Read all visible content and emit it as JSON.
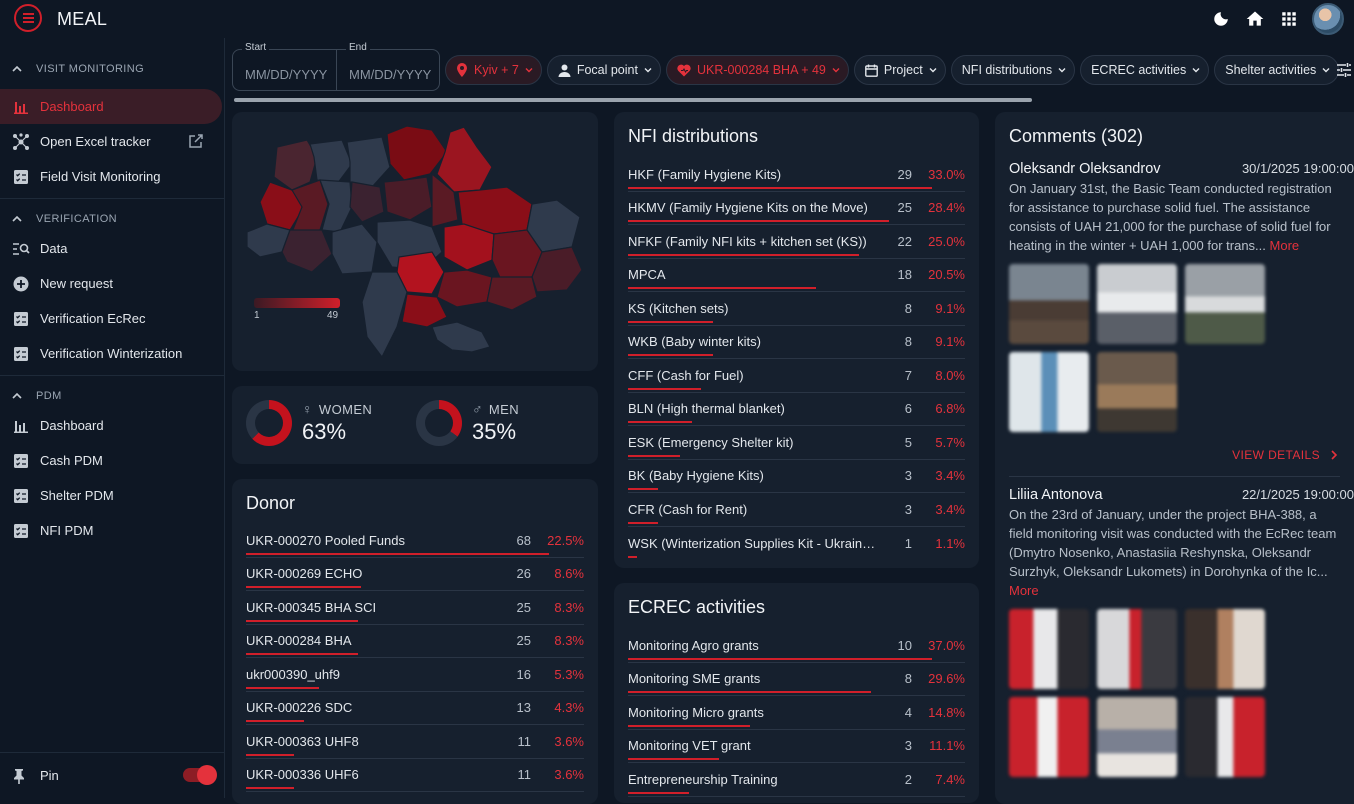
{
  "app": {
    "title": "MEAL"
  },
  "topbar": {
    "icons": [
      "dark-mode-icon",
      "home-icon",
      "apps-grid-icon",
      "user-avatar"
    ]
  },
  "sidebar": {
    "sections": [
      {
        "title": "VISIT MONITORING",
        "items": [
          {
            "label": "Dashboard",
            "icon": "bar-chart-icon",
            "active": true
          },
          {
            "label": "Open Excel tracker",
            "icon": "hub-icon",
            "external": true
          },
          {
            "label": "Field Visit Monitoring",
            "icon": "checklist-icon"
          }
        ]
      },
      {
        "title": "VERIFICATION",
        "items": [
          {
            "label": "Data",
            "icon": "search-list-icon"
          },
          {
            "label": "New request",
            "icon": "add-circle-icon"
          },
          {
            "label": "Verification EcRec",
            "icon": "checklist-icon"
          },
          {
            "label": "Verification Winterization",
            "icon": "checklist-icon"
          }
        ]
      },
      {
        "title": "PDM",
        "items": [
          {
            "label": "Dashboard",
            "icon": "bar-chart-icon"
          },
          {
            "label": "Cash PDM",
            "icon": "checklist-icon"
          },
          {
            "label": "Shelter PDM",
            "icon": "checklist-icon"
          },
          {
            "label": "NFI PDM",
            "icon": "checklist-icon"
          }
        ]
      }
    ],
    "pin_label": "Pin",
    "pin_enabled": true
  },
  "filters": {
    "start_label": "Start",
    "end_label": "End",
    "start_placeholder": "MM/DD/YYYY",
    "end_placeholder": "MM/DD/YYYY",
    "chips": [
      {
        "label": "Kyiv + 7",
        "icon": "location-pin-icon",
        "active": true
      },
      {
        "label": "Focal point",
        "icon": "person-icon",
        "active": false
      },
      {
        "label": "UKR-000284 BHA + 49",
        "icon": "donor-heart-icon",
        "active": true
      },
      {
        "label": "Project",
        "icon": "calendar-icon",
        "active": false
      },
      {
        "label": "NFI distributions",
        "icon": "",
        "active": false
      },
      {
        "label": "ECREC activities",
        "icon": "",
        "active": false
      },
      {
        "label": "Shelter activities",
        "icon": "",
        "active": false
      }
    ]
  },
  "map": {
    "legend_min": "1",
    "legend_max": "49",
    "colors": {
      "low": "#3b1a24",
      "high": "#d11f2a",
      "none": "#2b3848"
    }
  },
  "gender": {
    "women": {
      "label": "WOMEN",
      "value": "63%",
      "fraction": 0.63
    },
    "men": {
      "label": "MEN",
      "value": "35%",
      "fraction": 0.35
    }
  },
  "donor": {
    "title": "Donor",
    "rows": [
      {
        "label": "UKR-000270 Pooled Funds",
        "count": "68",
        "pct": "22.5%",
        "ratio": 1.0
      },
      {
        "label": "UKR-000269 ECHO",
        "count": "26",
        "pct": "8.6%",
        "ratio": 0.38
      },
      {
        "label": "UKR-000345 BHA SCI",
        "count": "25",
        "pct": "8.3%",
        "ratio": 0.37
      },
      {
        "label": "UKR-000284 BHA",
        "count": "25",
        "pct": "8.3%",
        "ratio": 0.37
      },
      {
        "label": "ukr000390_uhf9",
        "count": "16",
        "pct": "5.3%",
        "ratio": 0.24
      },
      {
        "label": "UKR-000226 SDC",
        "count": "13",
        "pct": "4.3%",
        "ratio": 0.19
      },
      {
        "label": "UKR-000363 UHF8",
        "count": "11",
        "pct": "3.6%",
        "ratio": 0.16
      },
      {
        "label": "UKR-000336 UHF6",
        "count": "11",
        "pct": "3.6%",
        "ratio": 0.16
      }
    ]
  },
  "nfi": {
    "title": "NFI distributions",
    "rows": [
      {
        "label": "HKF (Family Hygiene Kits)",
        "count": "29",
        "pct": "33.0%",
        "ratio": 1.0
      },
      {
        "label": "HKMV (Family Hygiene Kits on the Move)",
        "count": "25",
        "pct": "28.4%",
        "ratio": 0.86
      },
      {
        "label": "NFKF (Family NFI kits + kitchen set (KS))",
        "count": "22",
        "pct": "25.0%",
        "ratio": 0.76
      },
      {
        "label": "MPCA",
        "count": "18",
        "pct": "20.5%",
        "ratio": 0.62
      },
      {
        "label": "KS (Kitchen sets)",
        "count": "8",
        "pct": "9.1%",
        "ratio": 0.28
      },
      {
        "label": "WKB (Baby winter kits)",
        "count": "8",
        "pct": "9.1%",
        "ratio": 0.28
      },
      {
        "label": "CFF (Cash for Fuel)",
        "count": "7",
        "pct": "8.0%",
        "ratio": 0.24
      },
      {
        "label": "BLN (High thermal blanket)",
        "count": "6",
        "pct": "6.8%",
        "ratio": 0.21
      },
      {
        "label": "ESK (Emergency Shelter kit)",
        "count": "5",
        "pct": "5.7%",
        "ratio": 0.17
      },
      {
        "label": "BK (Baby Hygiene Kits)",
        "count": "3",
        "pct": "3.4%",
        "ratio": 0.1
      },
      {
        "label": "CFR (Cash for Rent)",
        "count": "3",
        "pct": "3.4%",
        "ratio": 0.1
      },
      {
        "label": "WSK (Winterization Supplies Kit - Ukraine, I...",
        "count": "1",
        "pct": "1.1%",
        "ratio": 0.03
      }
    ]
  },
  "ecrec": {
    "title": "ECREC activities",
    "rows": [
      {
        "label": "Monitoring Agro grants",
        "count": "10",
        "pct": "37.0%",
        "ratio": 1.0
      },
      {
        "label": "Monitoring SME grants",
        "count": "8",
        "pct": "29.6%",
        "ratio": 0.8
      },
      {
        "label": "Monitoring Micro grants",
        "count": "4",
        "pct": "14.8%",
        "ratio": 0.4
      },
      {
        "label": "Monitoring VET grant",
        "count": "3",
        "pct": "11.1%",
        "ratio": 0.3
      },
      {
        "label": "Entrepreneurship Training",
        "count": "2",
        "pct": "7.4%",
        "ratio": 0.2
      }
    ]
  },
  "comments": {
    "title": "Comments (302)",
    "view_details": "VIEW DETAILS",
    "items": [
      {
        "author": "Oleksandr Oleksandrov",
        "date": "30/1/2025 19:00:00",
        "text": "On January 31st, the Basic Team conducted registration for assistance to purchase solid fuel. The assistance consists of UAH 21,000 for the purchase of solid fuel for heating in the winter + UAH 1,000 for trans...",
        "more": "More",
        "photo_count": 5
      },
      {
        "author": "Liliia Antonova",
        "date": "22/1/2025 19:00:00",
        "text": "On the 23rd of January, under the project BHA-388, a field monitoring visit was conducted with the EcRec team (Dmytro Nosenko, Anastasiia Reshynska, Oleksandr Surzhyk, Oleksandr Lukomets) in Dorohynka of the Ic...",
        "more": "More",
        "photo_count": 6
      }
    ]
  }
}
